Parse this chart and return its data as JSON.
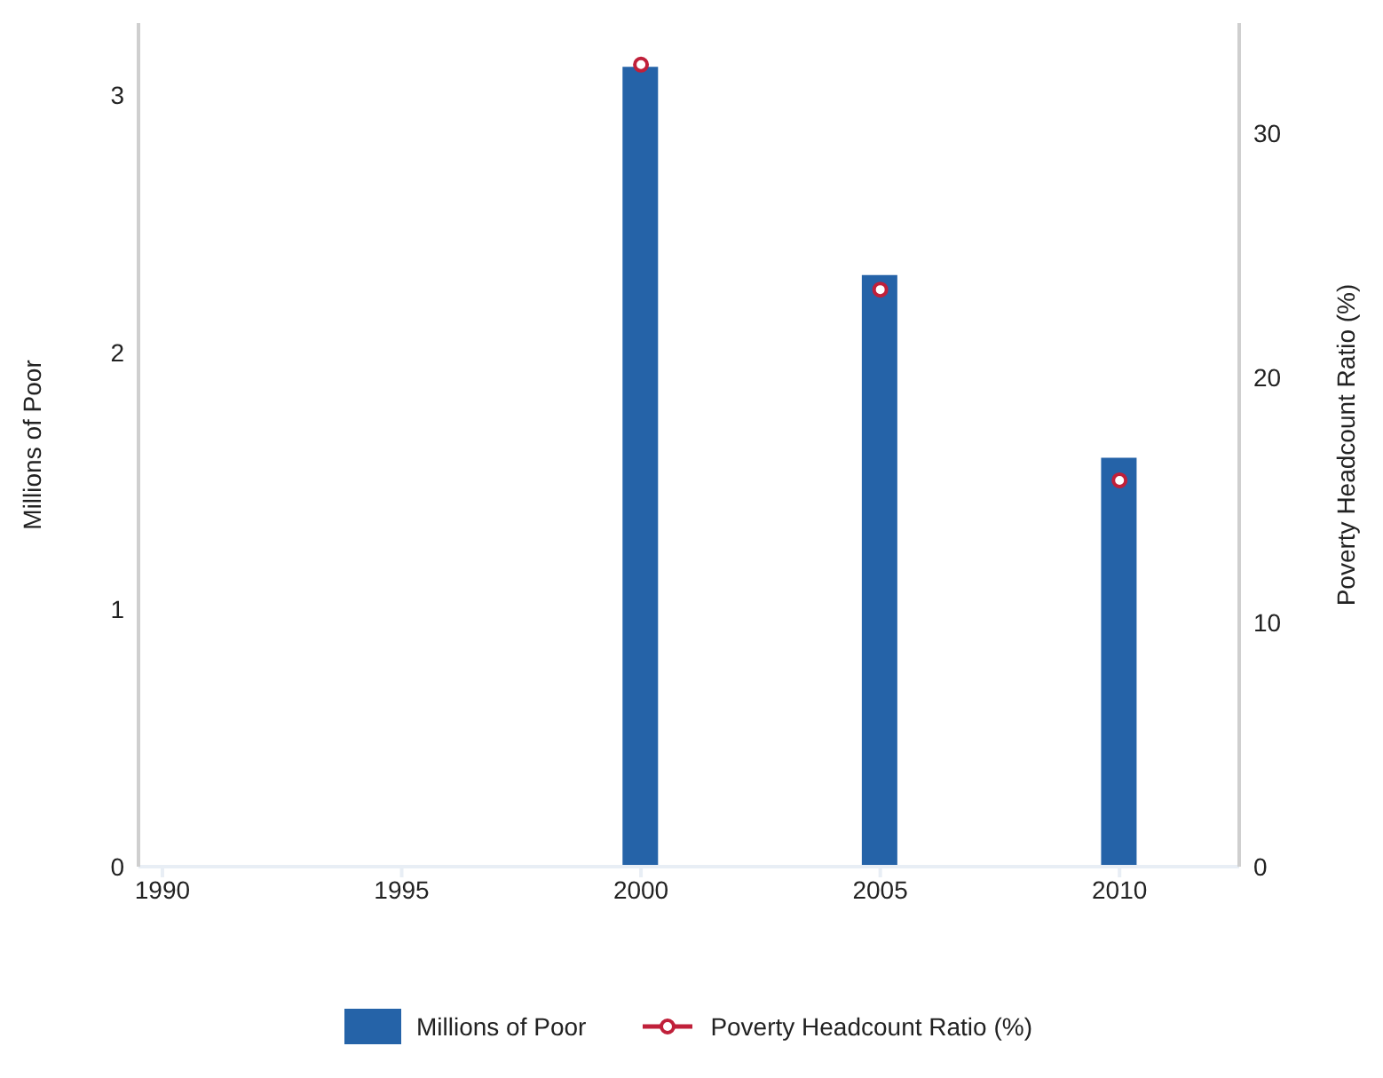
{
  "chart_data": {
    "type": "bar",
    "x": [
      2000,
      2005,
      2010
    ],
    "xlim": [
      1989.5,
      2012.5
    ],
    "xticks": [
      1990,
      1995,
      2000,
      2005,
      2010
    ],
    "ylabel": "Millions of Poor",
    "y2label": "Poverty Headcount Ratio (%)",
    "ylim": [
      0,
      3.28
    ],
    "yticks": [
      0,
      1,
      2,
      3
    ],
    "y2lim": [
      0,
      34.5
    ],
    "y2ticks": [
      0,
      10,
      20,
      30
    ],
    "series": [
      {
        "name": "Millions of Poor",
        "color": "#2563a8",
        "values": [
          3.11,
          2.3,
          1.59
        ]
      },
      {
        "name": "Poverty Headcount Ratio (%)",
        "type": "scatter",
        "axis": "y2",
        "color": "#c0203a",
        "marker": "circle",
        "values": [
          32.8,
          23.6,
          15.8
        ]
      }
    ],
    "legend": "bottom"
  }
}
